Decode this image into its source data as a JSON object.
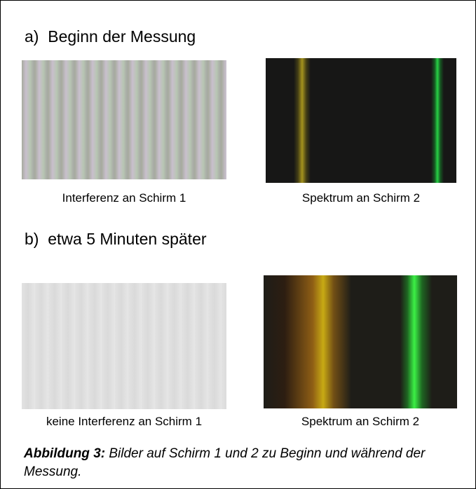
{
  "sections": [
    {
      "heading": "a)  Beginn der Messung",
      "images": [
        {
          "caption": "Interferenz an Schirm 1"
        },
        {
          "caption": "Spektrum an Schirm 2"
        }
      ]
    },
    {
      "heading": "b)  etwa 5 Minuten später",
      "images": [
        {
          "caption": "keine Interferenz an Schirm 1"
        },
        {
          "caption": "Spektrum an Schirm 2"
        }
      ]
    }
  ],
  "figure_caption": {
    "label": "Abbildung 3:",
    "text": "Bilder auf Schirm 1 und 2 zu Beginn und während der Messung."
  }
}
